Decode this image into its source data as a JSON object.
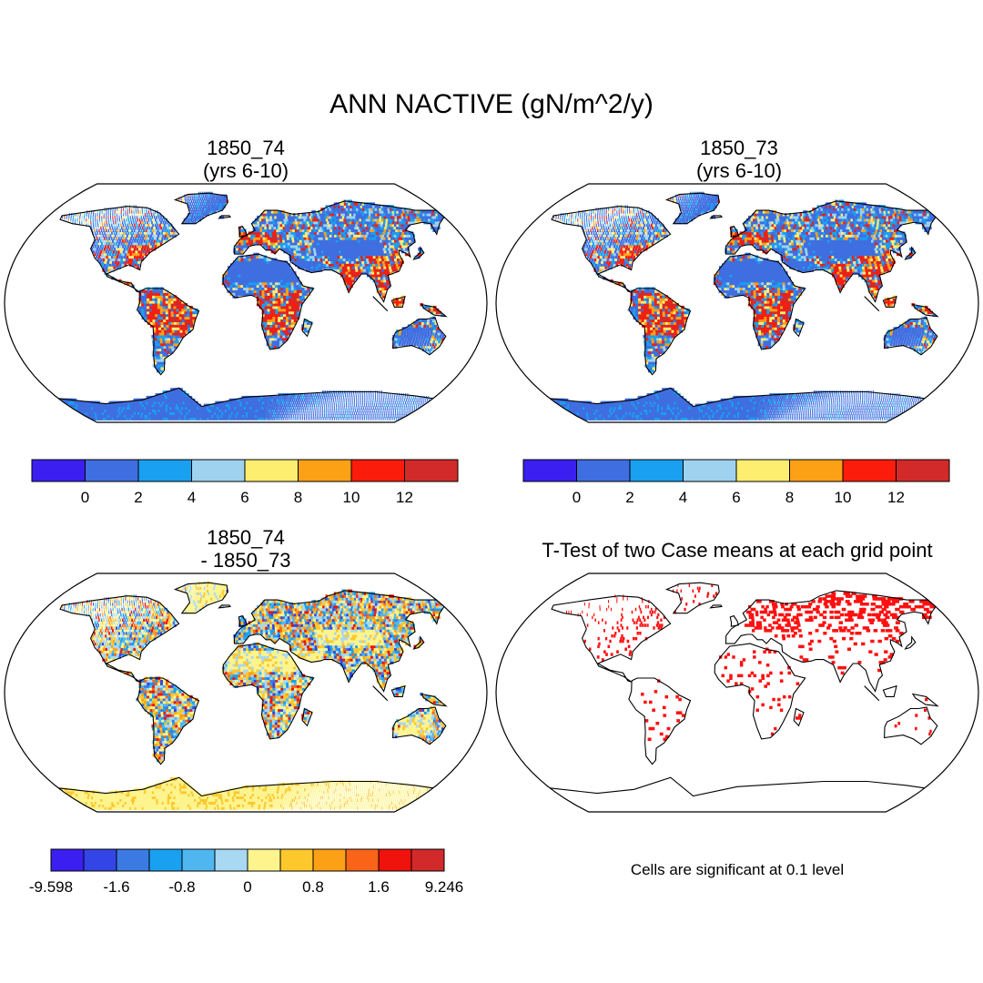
{
  "title": "ANN NACTIVE (gN/m^2/y)",
  "panels": [
    {
      "id": "case1",
      "title_line1": "1850_74",
      "title_line2": "(yrs 6-10)",
      "field": "case1"
    },
    {
      "id": "case2",
      "title_line1": "1850_73",
      "title_line2": "(yrs 6-10)",
      "field": "case2"
    },
    {
      "id": "diff",
      "title_line1": "1850_74",
      "title_line2": "- 1850_73",
      "field": "diff"
    },
    {
      "id": "ttest",
      "title_line1": "T-Test of two Case means at each grid point",
      "title_line2": "",
      "field": "sig"
    }
  ],
  "colorbar_cases": {
    "colors": [
      "#3b1ff0",
      "#3f6ee0",
      "#19a0f0",
      "#9ed2ee",
      "#fdee70",
      "#fca016",
      "#fb1c0c",
      "#d22a2a"
    ],
    "labels": [
      "0",
      "2",
      "4",
      "6",
      "8",
      "10",
      "12"
    ]
  },
  "colorbar_diff": {
    "colors": [
      "#3b1ff0",
      "#3345e6",
      "#3a7ae2",
      "#19a0f0",
      "#4fb6f0",
      "#a8d8f2",
      "#fdf48e",
      "#fdc82c",
      "#fca016",
      "#f96418",
      "#f0120c",
      "#d22a2a"
    ],
    "labels": [
      "-9.598",
      "-1.6",
      "-0.8",
      "0",
      "0.8",
      "1.6",
      "9.246"
    ]
  },
  "significance_note": "Cells are significant at 0.1 level",
  "significance_color": "#ff1010"
}
